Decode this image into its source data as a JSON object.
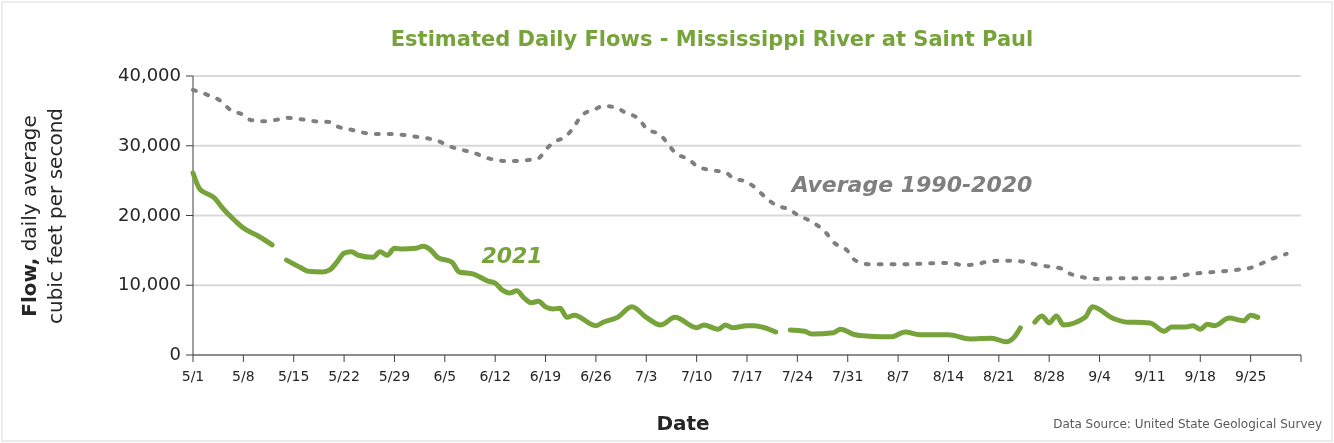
{
  "chart_data": {
    "type": "line",
    "title": "Estimated Daily Flows - Mississippi River at Saint Paul",
    "xlabel": "Date",
    "ylabel": "Flow, daily average cubic feet per second",
    "annotations": [
      "Data Source: United State Geological Survey"
    ],
    "xlim": [
      "--05-01",
      "--10-02"
    ],
    "xticks": [
      {
        "value": "--05-01",
        "label": "5/1"
      },
      {
        "value": "--05-08",
        "label": "5/8"
      },
      {
        "value": "--05-15",
        "label": "5/15"
      },
      {
        "value": "--05-22",
        "label": "5/22"
      },
      {
        "value": "--05-29",
        "label": "5/29"
      },
      {
        "value": "--06-05",
        "label": "6/5"
      },
      {
        "value": "--06-12",
        "label": "6/12"
      },
      {
        "value": "--06-19",
        "label": "6/19"
      },
      {
        "value": "--06-26",
        "label": "6/26"
      },
      {
        "value": "--07-03",
        "label": "7/3"
      },
      {
        "value": "--07-10",
        "label": "7/10"
      },
      {
        "value": "--07-17",
        "label": "7/17"
      },
      {
        "value": "--07-24",
        "label": "7/24"
      },
      {
        "value": "--07-31",
        "label": "7/31"
      },
      {
        "value": "--08-07",
        "label": "8/7"
      },
      {
        "value": "--08-14",
        "label": "8/14"
      },
      {
        "value": "--08-21",
        "label": "8/21"
      },
      {
        "value": "--08-28",
        "label": "8/28"
      },
      {
        "value": "--09-04",
        "label": "9/4"
      },
      {
        "value": "--09-11",
        "label": "9/11"
      },
      {
        "value": "--09-18",
        "label": "9/18"
      },
      {
        "value": "--09-25",
        "label": "9/25"
      }
    ],
    "ylim": [
      0,
      40000
    ],
    "yticks": [
      {
        "value": 0,
        "label": "0"
      },
      {
        "value": 10000,
        "label": "10,000"
      },
      {
        "value": 20000,
        "label": "20,000"
      },
      {
        "value": 30000,
        "label": "30,000"
      },
      {
        "value": 40000,
        "label": "40,000"
      }
    ],
    "grid": "y",
    "marker": "none",
    "series": [
      {
        "name": "Average 1990-2020",
        "color": "#7f7f7f",
        "line_style": "dotted",
        "x": [
          "--05-01",
          "--05-03",
          "--05-05",
          "--05-06",
          "--05-08",
          "--05-09",
          "--05-11",
          "--05-13",
          "--05-14",
          "--05-16",
          "--05-18",
          "--05-20",
          "--05-21",
          "--05-23",
          "--05-26",
          "--05-28",
          "--06-01",
          "--06-04",
          "--06-06",
          "--06-07",
          "--06-09",
          "--06-11",
          "--06-14",
          "--06-16",
          "--06-18",
          "--06-19",
          "--06-20",
          "--06-22",
          "--06-23",
          "--06-24",
          "--06-26",
          "--06-27",
          "--06-29",
          "--06-30",
          "--07-02",
          "--07-03",
          "--07-05",
          "--07-06",
          "--07-07",
          "--07-09",
          "--07-10",
          "--07-12",
          "--07-14",
          "--07-15",
          "--07-17",
          "--07-18",
          "--07-20",
          "--07-21",
          "--07-23",
          "--07-24",
          "--07-26",
          "--07-28",
          "--07-29",
          "--07-31",
          "--08-01",
          "--08-03",
          "--08-05",
          "--08-07",
          "--08-14",
          "--08-16",
          "--08-18",
          "--08-19",
          "--08-21",
          "--08-23",
          "--08-25",
          "--08-26",
          "--08-30",
          "--08-31",
          "--09-04",
          "--09-06",
          "--09-11",
          "--09-14",
          "--09-16",
          "--09-20",
          "--09-23",
          "--09-25",
          "--09-26",
          "--09-28",
          "--09-30"
        ],
        "values": [
          38000,
          37300,
          36300,
          35300,
          34400,
          33700,
          33500,
          33800,
          34000,
          33800,
          33500,
          33400,
          32800,
          32300,
          31700,
          31700,
          31300,
          30700,
          29800,
          29500,
          29000,
          28200,
          27800,
          27900,
          28200,
          29400,
          30400,
          31500,
          32800,
          34300,
          35300,
          35700,
          35400,
          34800,
          33800,
          32500,
          31500,
          30300,
          29000,
          28000,
          27100,
          26500,
          26200,
          25400,
          24800,
          24100,
          22200,
          21500,
          20800,
          20100,
          19100,
          17500,
          16200,
          14900,
          13600,
          13000,
          13000,
          13000,
          13200,
          12900,
          13000,
          13300,
          13500,
          13500,
          13300,
          13000,
          12300,
          11600,
          10900,
          11000,
          11000,
          11000,
          11500,
          11900,
          12200,
          12500,
          12900,
          13800,
          14500
        ]
      },
      {
        "name": "2021",
        "color": "#77a33b",
        "line_style": "solid",
        "x": [
          "--05-01",
          "--05-02",
          "--05-03",
          "--05-04",
          "--05-05",
          "--05-07",
          "--05-08",
          "--05-10",
          "--05-12",
          "--05-13",
          "--05-14",
          "--05-16",
          "--05-17",
          "--05-19",
          "--05-20",
          "--05-21",
          "--05-22",
          "--05-23",
          "--05-24",
          "--05-26",
          "--05-27",
          "--05-28",
          "--05-29",
          "--05-30",
          "--06-01",
          "--06-02",
          "--06-03",
          "--06-04",
          "--06-06",
          "--06-07",
          "--06-09",
          "--06-11",
          "--06-12",
          "--06-13",
          "--06-14",
          "--06-15",
          "--06-16",
          "--06-17",
          "--06-18",
          "--06-19",
          "--06-20",
          "--06-21",
          "--06-22",
          "--06-23",
          "--06-26",
          "--06-27",
          "--06-29",
          "--07-01",
          "--07-03",
          "--07-05",
          "--07-07",
          "--07-10",
          "--07-11",
          "--07-13",
          "--07-14",
          "--07-15",
          "--07-17",
          "--07-18",
          "--07-21",
          "--07-22",
          "--07-23",
          "--07-25",
          "--07-26",
          "--07-29",
          "--07-30",
          "--08-01",
          "--08-03",
          "--08-06",
          "--08-08",
          "--08-10",
          "--08-12",
          "--08-14",
          "--08-17",
          "--08-20",
          "--08-22",
          "--08-23",
          "--08-24",
          "--08-25",
          "--08-26",
          "--08-27",
          "--08-28",
          "--08-29",
          "--08-30",
          "--09-02",
          "--09-03",
          "--09-06",
          "--09-08",
          "--09-09",
          "--09-11",
          "--09-13",
          "--09-14",
          "--09-16",
          "--09-17",
          "--09-18",
          "--09-19",
          "--09-20",
          "--09-22",
          "--09-24",
          "--09-25",
          "--09-26"
        ],
        "values": [
          26100,
          23700,
          23100,
          22500,
          21200,
          19100,
          18200,
          17100,
          15800,
          null,
          13600,
          12500,
          12000,
          11900,
          12200,
          13300,
          14600,
          14800,
          14300,
          14000,
          14800,
          14300,
          15300,
          15200,
          15300,
          15600,
          15100,
          14000,
          13300,
          11900,
          11600,
          10600,
          10300,
          9300,
          8900,
          9200,
          8200,
          7500,
          7700,
          6900,
          6600,
          6700,
          5400,
          5700,
          4200,
          4700,
          5400,
          6900,
          5400,
          4300,
          5400,
          3900,
          4300,
          3700,
          4300,
          3900,
          4200,
          4200,
          3300,
          null,
          3600,
          3400,
          3000,
          3200,
          3700,
          2900,
          2700,
          2600,
          3300,
          2900,
          2900,
          2900,
          2300,
          2400,
          1900,
          2400,
          3900,
          null,
          4700,
          5600,
          4600,
          5600,
          4300,
          5400,
          6900,
          5200,
          4700,
          4700,
          4600,
          3400,
          4000,
          4000,
          4200,
          3700,
          4400,
          4200,
          5300,
          4900,
          5700,
          5400
        ]
      }
    ]
  }
}
